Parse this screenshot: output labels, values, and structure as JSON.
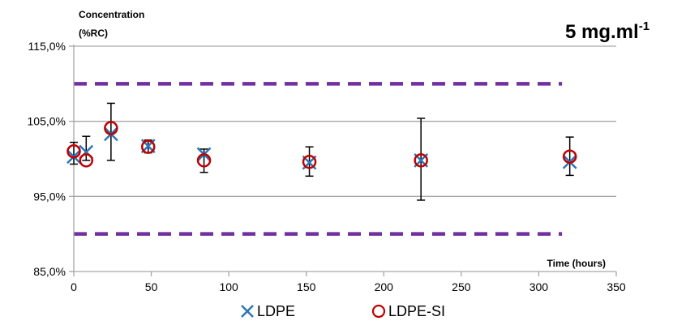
{
  "chart_data": {
    "type": "scatter",
    "title_main": "5 mg.ml",
    "title_superscript": "-1",
    "ylabel_line1": "Concentration",
    "ylabel_line2": "(%RC)",
    "xlabel": "Time (hours)",
    "xlim": [
      0,
      350
    ],
    "ylim": [
      85,
      115
    ],
    "x_ticks": [
      0,
      50,
      100,
      150,
      200,
      250,
      300,
      350
    ],
    "x_tick_labels": [
      "0",
      "50",
      "100",
      "150",
      "200",
      "250",
      "300",
      "350"
    ],
    "y_ticks": [
      85,
      95,
      105,
      115
    ],
    "y_tick_labels": [
      "85,0%",
      "95,0%",
      "105,0%",
      "115,0%"
    ],
    "grid": "horizontal",
    "legend_placement": "bottom",
    "limits": {
      "upper": 110,
      "lower": 90,
      "x_range": [
        0,
        315
      ],
      "color": "#7030a0"
    },
    "series": [
      {
        "name": "LDPE",
        "marker": "x",
        "color": "#2e75b6",
        "points": [
          {
            "x": 0,
            "y": 100.3
          },
          {
            "x": 8,
            "y": 100.9
          },
          {
            "x": 24,
            "y": 103.3
          },
          {
            "x": 48,
            "y": 101.7
          },
          {
            "x": 84,
            "y": 100.6
          },
          {
            "x": 152,
            "y": 99.5
          },
          {
            "x": 224,
            "y": 99.8
          },
          {
            "x": 320,
            "y": 99.6
          }
        ]
      },
      {
        "name": "LDPE-SI",
        "marker": "circle",
        "color": "#c00000",
        "points": [
          {
            "x": 0,
            "y": 101.0
          },
          {
            "x": 8,
            "y": 99.8
          },
          {
            "x": 24,
            "y": 104.1
          },
          {
            "x": 48,
            "y": 101.6
          },
          {
            "x": 84,
            "y": 99.8
          },
          {
            "x": 152,
            "y": 99.6
          },
          {
            "x": 224,
            "y": 99.8
          },
          {
            "x": 320,
            "y": 100.3
          }
        ]
      }
    ],
    "error_bars": [
      {
        "x": 0,
        "low": 99.3,
        "high": 102.2
      },
      {
        "x": 8,
        "low": 99.8,
        "high": 103.0
      },
      {
        "x": 24,
        "low": 99.8,
        "high": 107.4
      },
      {
        "x": 48,
        "low": 100.8,
        "high": 102.5
      },
      {
        "x": 84,
        "low": 98.2,
        "high": 101.3
      },
      {
        "x": 152,
        "low": 97.7,
        "high": 101.6
      },
      {
        "x": 224,
        "low": 94.5,
        "high": 105.4
      },
      {
        "x": 320,
        "low": 97.8,
        "high": 102.9
      }
    ],
    "colors": {
      "grid": "#a6a6a6",
      "axis": "#a6a6a6",
      "error_bar": "#000000"
    }
  }
}
